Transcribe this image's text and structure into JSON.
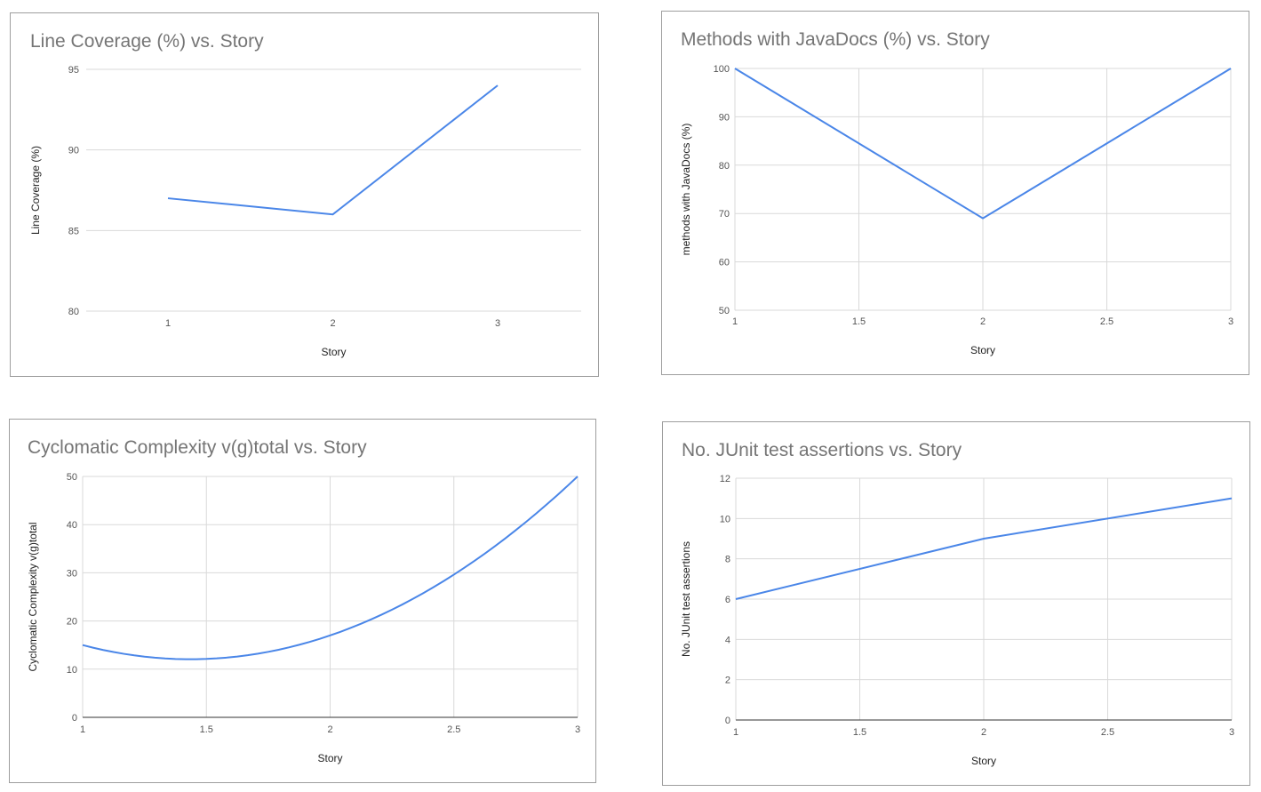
{
  "chart_data": [
    {
      "type": "line",
      "title": "Line Coverage (%) vs. Story",
      "xlabel": "Story",
      "ylabel": "Line Coverage (%)",
      "x_axis": "category",
      "categories": [
        "1",
        "2",
        "3"
      ],
      "xticks": [
        "1",
        "2",
        "3"
      ],
      "ylim": [
        80,
        95
      ],
      "yticks": [
        80,
        85,
        90,
        95
      ],
      "vertical_grid": false,
      "smooth": false,
      "series": [
        {
          "values": [
            87,
            86,
            94
          ],
          "color": "#4a86e8"
        }
      ]
    },
    {
      "type": "line",
      "title": "Methods with JavaDocs (%) vs. Story",
      "xlabel": "Story",
      "ylabel": "methods with JavaDocs (%)",
      "x_axis": "numeric",
      "x": [
        1,
        2,
        3
      ],
      "xlim": [
        1,
        3
      ],
      "xticks": [
        "1",
        "1.5",
        "2",
        "2.5",
        "3"
      ],
      "ylim": [
        50,
        100
      ],
      "yticks": [
        50,
        60,
        70,
        80,
        90,
        100
      ],
      "vertical_grid": true,
      "smooth": false,
      "series": [
        {
          "values": [
            100,
            69,
            100
          ],
          "color": "#4a86e8"
        }
      ]
    },
    {
      "type": "line",
      "title": "Cyclomatic Complexity v(g)total vs. Story",
      "xlabel": "Story",
      "ylabel": "Cyclomatic Complexity v(g)total",
      "x_axis": "numeric",
      "x": [
        1,
        2,
        3
      ],
      "xlim": [
        1,
        3
      ],
      "xticks": [
        "1",
        "1.5",
        "2",
        "2.5",
        "3"
      ],
      "ylim": [
        0,
        50
      ],
      "yticks": [
        0,
        10,
        20,
        30,
        40,
        50
      ],
      "vertical_grid": true,
      "smooth": true,
      "series": [
        {
          "values": [
            15,
            17,
            50
          ],
          "color": "#4a86e8"
        }
      ]
    },
    {
      "type": "line",
      "title": "No. JUnit test assertions vs. Story",
      "xlabel": "Story",
      "ylabel": "No. JUnit test assertions",
      "x_axis": "numeric",
      "x": [
        1,
        2,
        3
      ],
      "xlim": [
        1,
        3
      ],
      "xticks": [
        "1",
        "1.5",
        "2",
        "2.5",
        "3"
      ],
      "ylim": [
        0,
        12
      ],
      "yticks": [
        0,
        2,
        4,
        6,
        8,
        10,
        12
      ],
      "vertical_grid": true,
      "smooth": false,
      "series": [
        {
          "values": [
            6,
            9,
            11
          ],
          "color": "#4a86e8"
        }
      ]
    }
  ]
}
